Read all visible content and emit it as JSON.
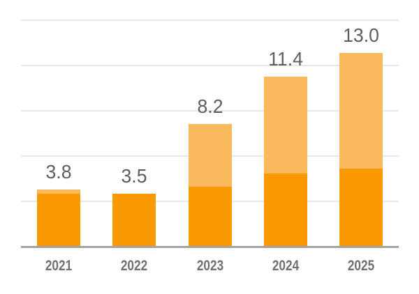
{
  "colors": {
    "background": "#FFFFFF",
    "bar_dark": "#FB9902",
    "bar_light": "#FBB95E",
    "gridline": "#E8E8E8",
    "axis_line": "#A3A3A3",
    "value_label": "#5E5E5E",
    "category_label": "#707070"
  },
  "chart_data": {
    "type": "bar",
    "stacked": true,
    "title": "",
    "xlabel": "",
    "ylabel": "",
    "categories": [
      "2021",
      "2022",
      "2023",
      "2024",
      "2025"
    ],
    "series": [
      {
        "name": "dark-orange-segment",
        "color": "#FB9902",
        "values": [
          3.5,
          3.5,
          4.0,
          4.9,
          5.2
        ]
      },
      {
        "name": "light-orange-segment",
        "color": "#FBB95E",
        "values": [
          0.3,
          0.0,
          4.2,
          6.5,
          7.8
        ]
      }
    ],
    "totals": [
      3.8,
      3.5,
      8.2,
      11.4,
      13.0
    ],
    "data_labels": [
      "3.8",
      "3.5",
      "8.2",
      "11.4",
      "13.0"
    ],
    "ylim": [
      0,
      15.3
    ],
    "grid": true,
    "legend": false
  }
}
